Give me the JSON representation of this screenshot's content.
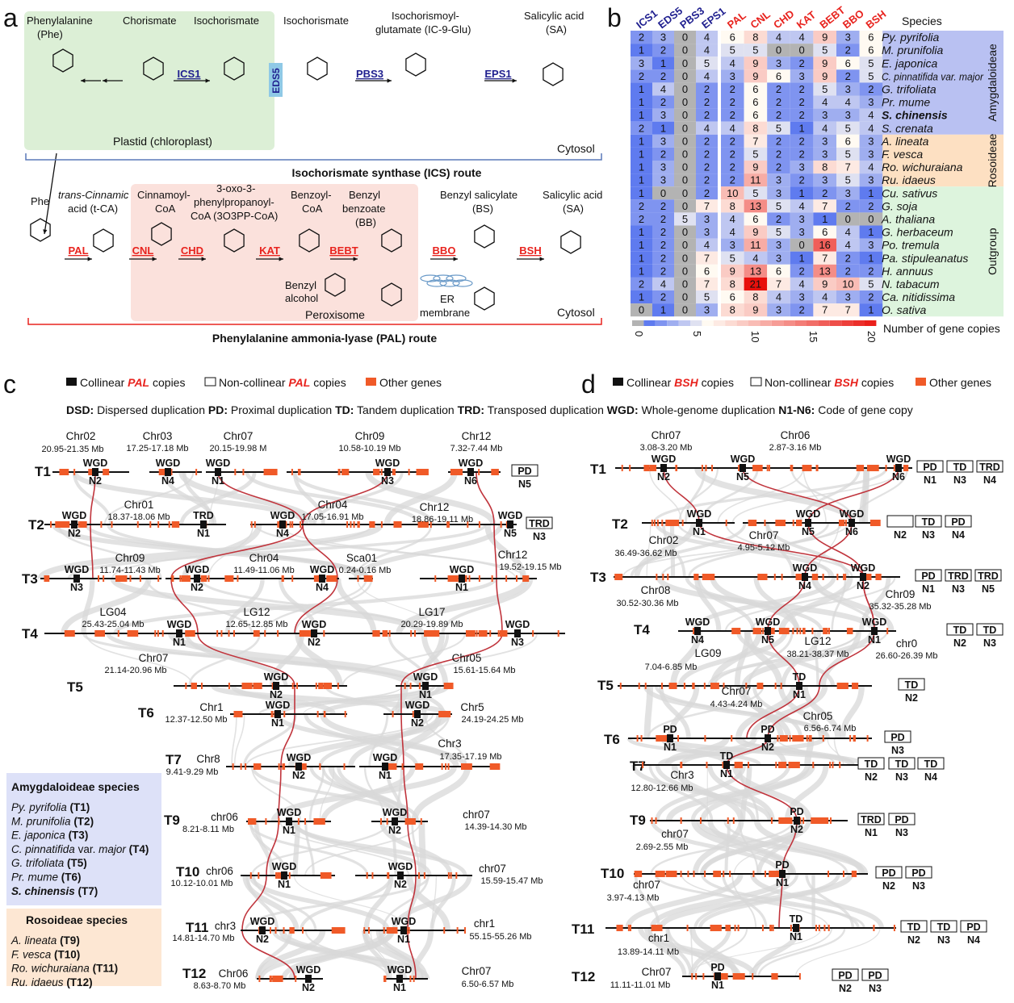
{
  "panel_a": {
    "label": "a",
    "top_labels": [
      "Phenylalanine",
      "(Phe)",
      "Chorismate",
      "Isochorismate",
      "Isochorismate",
      "Isochorismoyl-",
      "glutamate (IC-9-Glu)",
      "Salicylic acid",
      "(SA)"
    ],
    "top_enzymes": [
      "ICS1",
      "EDS5",
      "PBS3",
      "EPS1"
    ],
    "plastid": "Plastid (chloroplast)",
    "cytosol_top": "Cytosol",
    "ics_route": "Isochorismate synthase (ICS) route",
    "bottom_labels": [
      "Phe",
      "trans-Cinnamic",
      "acid (t-CA)",
      "Cinnamoyl-",
      "CoA",
      "3-oxo-3-",
      "phenylpropanoyl-",
      "CoA (3O3PP-CoA)",
      "Benzoyl-",
      "CoA",
      "Benzyl",
      "benzoate",
      "(BB)",
      "Benzyl salicylate",
      "(BS)",
      "Salicylic acid",
      "(SA)",
      "Benzyl",
      "alcohol",
      "ER",
      "membrane"
    ],
    "bottom_enzymes": [
      "PAL",
      "CNL",
      "CHD",
      "KAT",
      "BEBT",
      "BBO",
      "BSH"
    ],
    "peroxisome": "Peroxisome",
    "cytosol_bottom": "Cytosol",
    "pal_route": "Phenylalanine ammonia-lyase (PAL) route",
    "colors": {
      "ics": "#1f1f8f",
      "pal": "#e8231e",
      "plastid": "#dcefd6",
      "peroxisome": "#fbe1dc",
      "eds5_box": "#8fc9e6"
    }
  },
  "chart_data": {
    "type": "heatmap",
    "label": "b",
    "ics_genes": [
      "ICS1",
      "EDS5",
      "PBS3",
      "EPS1"
    ],
    "pal_genes": [
      "PAL",
      "CNL",
      "CHD",
      "KAT",
      "BEBT",
      "BBO",
      "BSH"
    ],
    "species_header": "Species",
    "species": [
      "Py. pyrifolia",
      "M. prunifolia",
      "E. japonica",
      "C. pinnatifida var. major",
      "G. trifoliata",
      "Pr. mume",
      "S. chinensis",
      "S. crenata",
      "A. lineata",
      "F. vesca",
      "Ro. wichuraiana",
      "Ru. idaeus",
      "Cu. sativus",
      "G. soja",
      "A. thaliana",
      "G. herbaceum",
      "Po. tremula",
      "Pa. stipuleanatus",
      "H. annuus",
      "N. tabacum",
      "Ca. nitidissima",
      "O. sativa"
    ],
    "highlight_species": "S. chinensis",
    "groups": [
      {
        "name": "Amygdaloideae",
        "rows": 8,
        "color": "#b9c1f2"
      },
      {
        "name": "Rosoideae",
        "rows": 4,
        "color": "#fde0c2"
      },
      {
        "name": "Outgroup",
        "rows": 10,
        "color": "#ddf4dd"
      }
    ],
    "values": [
      [
        2,
        3,
        0,
        4,
        6,
        8,
        4,
        4,
        9,
        3,
        6
      ],
      [
        1,
        2,
        0,
        4,
        5,
        5,
        0,
        0,
        5,
        2,
        6
      ],
      [
        3,
        1,
        0,
        5,
        4,
        9,
        3,
        2,
        9,
        6,
        5
      ],
      [
        2,
        2,
        0,
        4,
        3,
        9,
        6,
        3,
        9,
        2,
        5
      ],
      [
        1,
        4,
        0,
        2,
        2,
        6,
        2,
        2,
        5,
        3,
        2
      ],
      [
        1,
        2,
        0,
        2,
        2,
        6,
        2,
        2,
        4,
        4,
        3
      ],
      [
        1,
        3,
        0,
        2,
        2,
        6,
        2,
        2,
        3,
        3,
        4
      ],
      [
        2,
        1,
        0,
        4,
        4,
        8,
        5,
        1,
        4,
        5,
        4
      ],
      [
        1,
        3,
        0,
        2,
        2,
        7,
        2,
        2,
        3,
        6,
        3
      ],
      [
        1,
        2,
        0,
        2,
        2,
        5,
        2,
        2,
        3,
        5,
        3
      ],
      [
        1,
        3,
        0,
        2,
        2,
        9,
        2,
        3,
        8,
        7,
        4
      ],
      [
        1,
        3,
        0,
        2,
        2,
        11,
        3,
        2,
        3,
        5,
        3
      ],
      [
        1,
        0,
        0,
        2,
        10,
        5,
        3,
        1,
        2,
        3,
        1
      ],
      [
        2,
        2,
        0,
        7,
        8,
        13,
        5,
        4,
        7,
        2,
        2
      ],
      [
        2,
        2,
        5,
        3,
        4,
        6,
        2,
        3,
        1,
        0,
        0
      ],
      [
        1,
        2,
        0,
        3,
        4,
        9,
        5,
        3,
        6,
        4,
        1
      ],
      [
        1,
        2,
        0,
        4,
        3,
        11,
        3,
        0,
        16,
        4,
        3
      ],
      [
        1,
        2,
        0,
        7,
        5,
        4,
        3,
        1,
        7,
        2,
        1
      ],
      [
        1,
        2,
        0,
        6,
        9,
        13,
        6,
        2,
        13,
        2,
        2
      ],
      [
        2,
        4,
        0,
        7,
        8,
        21,
        7,
        4,
        9,
        10,
        5
      ],
      [
        1,
        2,
        0,
        5,
        6,
        8,
        4,
        3,
        4,
        3,
        2
      ],
      [
        0,
        1,
        0,
        3,
        8,
        9,
        3,
        2,
        7,
        7,
        1
      ]
    ],
    "colorbar": {
      "label": "Number of gene copies",
      "ticks": [
        0,
        5,
        10,
        15,
        20
      ],
      "range": [
        0,
        21
      ],
      "zero_color": "#b3b3b3",
      "low_color": "#5f7bef",
      "mid_color": "#fffaf2",
      "high_color": "#e8100c"
    }
  },
  "panel_c": {
    "label": "c",
    "legend": [
      {
        "pre": "Collinear ",
        "gene": "PAL",
        "post": " copies"
      },
      {
        "pre": "Non-collinear ",
        "gene": "PAL",
        "post": " copies"
      },
      {
        "pre": "Other genes",
        "gene": "",
        "post": ""
      }
    ],
    "abbrev": [
      {
        "k": "DSD:",
        "v": " Dispersed duplication"
      },
      {
        "k": "PD:",
        "v": " Proximal duplication"
      },
      {
        "k": "TD:",
        "v": " Tandem duplication"
      },
      {
        "k": "TRD:",
        "v": " Transposed duplication"
      },
      {
        "k": "WGD:",
        "v": " Whole-genome duplication"
      },
      {
        "k": "N1-N6:",
        "v": " Code of gene copy"
      }
    ],
    "tracks": [
      {
        "id": "T1",
        "chrs": [
          {
            "n": "Chr02",
            "r": "20.95-21.35 Mb"
          },
          {
            "n": "Chr03",
            "r": "17.25-17.18 Mb"
          },
          {
            "n": "Chr07",
            "r": "20.15-19.98 M"
          },
          {
            "n": "Chr09",
            "r": "10.58-10.19 Mb"
          },
          {
            "n": "Chr12",
            "r": "7.32-7.44 Mb"
          }
        ],
        "marks": [
          {
            "t": "WGD",
            "n": "N2"
          },
          {
            "t": "WGD",
            "n": "N4"
          },
          {
            "t": "WGD",
            "n": "N1"
          },
          {
            "t": "WGD",
            "n": "N3"
          },
          {
            "t": "WGD",
            "n": "N6"
          }
        ],
        "boxes": [
          {
            "t": "PD",
            "n": "N5"
          }
        ]
      },
      {
        "id": "T2",
        "chrs": [
          {
            "n": "Chr01",
            "r": "18.37-18.06 Mb"
          },
          {
            "n": "Chr04",
            "r": "17.05-16.91 Mb"
          },
          {
            "n": "Chr12",
            "r": "18.86-19.11 Mb"
          }
        ],
        "marks": [
          {
            "t": "WGD",
            "n": "N2"
          },
          {
            "t": "TRD",
            "n": "N1"
          },
          {
            "t": "WGD",
            "n": "N4"
          },
          {
            "t": "WGD",
            "n": "N5"
          }
        ],
        "boxes": [
          {
            "t": "TRD",
            "n": "N3"
          }
        ]
      },
      {
        "id": "T3",
        "chrs": [
          {
            "n": "Chr09",
            "r": "11.74-11.43 Mb"
          },
          {
            "n": "Chr04",
            "r": "11.49-11.06 Mb"
          },
          {
            "n": "Sca01",
            "r": "0.24-0.16 Mb"
          },
          {
            "n": "Chr12",
            "r": "19.52-19.15 Mb"
          }
        ],
        "marks": [
          {
            "t": "WGD",
            "n": "N3"
          },
          {
            "t": "WGD",
            "n": "N2"
          },
          {
            "t": "WGD",
            "n": "N4"
          },
          {
            "t": "WGD",
            "n": "N1"
          }
        ],
        "boxes": []
      },
      {
        "id": "T4",
        "chrs": [
          {
            "n": "LG04",
            "r": "25.43-25.04 Mb"
          },
          {
            "n": "LG12",
            "r": "12.65-12.85 Mb"
          },
          {
            "n": "LG17",
            "r": "20.29-19.89 Mb"
          }
        ],
        "marks": [
          {
            "t": "WGD",
            "n": "N1"
          },
          {
            "t": "WGD",
            "n": "N2"
          },
          {
            "t": "WGD",
            "n": "N3"
          }
        ],
        "boxes": []
      },
      {
        "id": "T5",
        "chrs": [
          {
            "n": "Chr07",
            "r": "21.14-20.96 Mb"
          },
          {
            "n": "Chr05",
            "r": "15.61-15.64 Mb"
          }
        ],
        "marks": [
          {
            "t": "WGD",
            "n": "N2"
          },
          {
            "t": "WGD",
            "n": "N1"
          }
        ],
        "boxes": []
      },
      {
        "id": "T6",
        "chrs": [
          {
            "n": "Chr1",
            "r": "12.37-12.50 Mb"
          },
          {
            "n": "Chr5",
            "r": "24.19-24.25 Mb"
          }
        ],
        "marks": [
          {
            "t": "WGD",
            "n": "N1"
          },
          {
            "t": "WGD",
            "n": "N2"
          }
        ],
        "boxes": []
      },
      {
        "id": "T7",
        "chrs": [
          {
            "n": "Chr8",
            "r": "9.41-9.29 Mb"
          },
          {
            "n": "Chr3",
            "r": "17.35-17.19 Mb"
          }
        ],
        "marks": [
          {
            "t": "WGD",
            "n": "N2"
          },
          {
            "t": "WGD",
            "n": "N1"
          }
        ],
        "boxes": []
      },
      {
        "id": "T9",
        "chrs": [
          {
            "n": "chr06",
            "r": "8.21-8.11 Mb"
          },
          {
            "n": "chr07",
            "r": "14.39-14.30 Mb"
          }
        ],
        "marks": [
          {
            "t": "WGD",
            "n": "N1"
          },
          {
            "t": "WGD",
            "n": "N2"
          }
        ],
        "boxes": []
      },
      {
        "id": "T10",
        "chrs": [
          {
            "n": "chr06",
            "r": "10.12-10.01 Mb"
          },
          {
            "n": "chr07",
            "r": "15.59-15.47 Mb"
          }
        ],
        "marks": [
          {
            "t": "WGD",
            "n": "N1"
          },
          {
            "t": "WGD",
            "n": "N2"
          }
        ],
        "boxes": []
      },
      {
        "id": "T11",
        "chrs": [
          {
            "n": "chr3",
            "r": "14.81-14.70 Mb"
          },
          {
            "n": "chr1",
            "r": "55.15-55.26 Mb"
          }
        ],
        "marks": [
          {
            "t": "WGD",
            "n": "N2"
          },
          {
            "t": "WGD",
            "n": "N1"
          }
        ],
        "boxes": []
      },
      {
        "id": "T12",
        "chrs": [
          {
            "n": "Chr06",
            "r": "8.63-8.70 Mb"
          },
          {
            "n": "Chr07",
            "r": "6.50-6.57 Mb"
          }
        ],
        "marks": [
          {
            "t": "WGD",
            "n": "N2"
          },
          {
            "t": "WGD",
            "n": "N1"
          }
        ],
        "boxes": []
      }
    ],
    "amygdaloideae": {
      "title": "Amygdaloideae species",
      "items": [
        {
          "sp": "Py. pyrifolia",
          "code": "(T1)"
        },
        {
          "sp": "M. prunifolia",
          "code": "(T2)"
        },
        {
          "sp": "E. japonica",
          "code": "(T3)"
        },
        {
          "sp": "C. pinnatifida",
          "extra": " var. ",
          "sp2": "major",
          "code": "(T4)"
        },
        {
          "sp": "G. trifoliata",
          "code": "(T5)"
        },
        {
          "sp": "Pr. mume",
          "code": "(T6)"
        },
        {
          "sp": "S. chinensis",
          "code": "(T7)"
        }
      ]
    },
    "rosoideae": {
      "title": "Rosoideae species",
      "items": [
        {
          "sp": "A. lineata",
          "code": "(T9)"
        },
        {
          "sp": "F. vesca",
          "code": "(T10)"
        },
        {
          "sp": "Ro. wichuraiana",
          "code": "(T11)"
        },
        {
          "sp": "Ru. idaeus",
          "code": "(T12)"
        }
      ]
    }
  },
  "panel_d": {
    "label": "d",
    "legend": [
      {
        "pre": "Collinear ",
        "gene": "BSH",
        "post": " copies"
      },
      {
        "pre": "Non-collinear ",
        "gene": "BSH",
        "post": " copies"
      },
      {
        "pre": "Other genes",
        "gene": "",
        "post": ""
      }
    ],
    "tracks": [
      {
        "id": "T1",
        "chrs": [
          {
            "n": "Chr07",
            "r": "3.08-3.20 Mb"
          },
          {
            "n": "Chr06",
            "r": "2.87-3.16 Mb"
          }
        ],
        "marks": [
          {
            "t": "WGD",
            "n": "N2"
          },
          {
            "t": "WGD",
            "n": "N5"
          },
          {
            "t": "WGD",
            "n": "N6"
          }
        ],
        "boxes": [
          {
            "t": "PD",
            "n": "N1"
          },
          {
            "t": "TD",
            "n": "N3"
          },
          {
            "t": "TRD",
            "n": "N4"
          }
        ]
      },
      {
        "id": "T2",
        "chrs": [
          {
            "n": "Chr02",
            "r": "36.49-36.62 Mb"
          },
          {
            "n": "Chr07",
            "r": "4.95-5.12 Mb"
          }
        ],
        "marks": [
          {
            "t": "WGD",
            "n": "N1"
          },
          {
            "t": "WGD",
            "n": "N5"
          },
          {
            "t": "WGD",
            "n": "N6"
          }
        ],
        "boxes": [
          {
            "t": "",
            "n": "N2"
          },
          {
            "t": "TD",
            "n": "N3"
          },
          {
            "t": "PD",
            "n": "N4"
          }
        ]
      },
      {
        "id": "T3",
        "chrs": [
          {
            "n": "Chr08",
            "r": "30.52-30.36 Mb"
          },
          {
            "n": "Chr09",
            "r": "35.32-35.28 Mb"
          }
        ],
        "marks": [
          {
            "t": "WGD",
            "n": "N4"
          },
          {
            "t": "WGD",
            "n": "N2"
          }
        ],
        "boxes": [
          {
            "t": "PD",
            "n": "N1"
          },
          {
            "t": "TRD",
            "n": "N3"
          },
          {
            "t": "TRD",
            "n": "N5"
          }
        ]
      },
      {
        "id": "T4",
        "chrs": [
          {
            "n": "LG09",
            "r": "7.04-6.85 Mb"
          },
          {
            "n": "LG12",
            "r": "38.21-38.37 Mb"
          },
          {
            "n": "chr0",
            "r": "26.60-26.39 Mb"
          }
        ],
        "marks": [
          {
            "t": "WGD",
            "n": "N4"
          },
          {
            "t": "WGD",
            "n": "N5"
          },
          {
            "t": "WGD",
            "n": "N1"
          }
        ],
        "boxes": [
          {
            "t": "TD",
            "n": "N2"
          },
          {
            "t": "TD",
            "n": "N3"
          }
        ]
      },
      {
        "id": "T5",
        "chrs": [
          {
            "n": "Chr07",
            "r": "4.43-4.24 Mb"
          }
        ],
        "marks": [
          {
            "t": "TD",
            "n": "N1"
          }
        ],
        "boxes": [
          {
            "t": "TD",
            "n": "N2"
          }
        ]
      },
      {
        "id": "T6",
        "chrs": [
          {
            "n": "Chr05",
            "r": "6.56-6.74 Mb"
          }
        ],
        "marks": [
          {
            "t": "PD",
            "n": "N1"
          },
          {
            "t": "PD",
            "n": "N2"
          }
        ],
        "boxes": [
          {
            "t": "PD",
            "n": "N3"
          }
        ]
      },
      {
        "id": "T7",
        "chrs": [
          {
            "n": "Chr3",
            "r": "12.80-12.66 Mb"
          }
        ],
        "marks": [
          {
            "t": "TD",
            "n": "N1"
          }
        ],
        "boxes": [
          {
            "t": "TD",
            "n": "N2"
          },
          {
            "t": "TD",
            "n": "N3"
          },
          {
            "t": "TD",
            "n": "N4"
          }
        ]
      },
      {
        "id": "T9",
        "chrs": [
          {
            "n": "chr07",
            "r": "2.69-2.55 Mb"
          }
        ],
        "marks": [
          {
            "t": "PD",
            "n": "N2"
          }
        ],
        "boxes": [
          {
            "t": "TRD",
            "n": "N1"
          },
          {
            "t": "PD",
            "n": "N3"
          }
        ]
      },
      {
        "id": "T10",
        "chrs": [
          {
            "n": "chr07",
            "r": "3.97-4.13 Mb"
          }
        ],
        "marks": [
          {
            "t": "PD",
            "n": "N1"
          }
        ],
        "boxes": [
          {
            "t": "PD",
            "n": "N2"
          },
          {
            "t": "PD",
            "n": "N3"
          }
        ]
      },
      {
        "id": "T11",
        "chrs": [
          {
            "n": "chr1",
            "r": "13.89-14.11 Mb"
          }
        ],
        "marks": [
          {
            "t": "TD",
            "n": "N1"
          }
        ],
        "boxes": [
          {
            "t": "TD",
            "n": "N2"
          },
          {
            "t": "TD",
            "n": "N3"
          },
          {
            "t": "PD",
            "n": "N4"
          }
        ]
      },
      {
        "id": "T12",
        "chrs": [
          {
            "n": "Chr07",
            "r": "11.11-11.01 Mb"
          }
        ],
        "marks": [
          {
            "t": "PD",
            "n": "N1"
          }
        ],
        "boxes": [
          {
            "t": "PD",
            "n": "N2"
          },
          {
            "t": "PD",
            "n": "N3"
          }
        ]
      }
    ]
  },
  "colors": {
    "gene": "#f05a28",
    "link": "#c0343c",
    "synteny": "#d8d8d8",
    "amy_box": "#dde1f8",
    "ros_box": "#fde7d3"
  }
}
